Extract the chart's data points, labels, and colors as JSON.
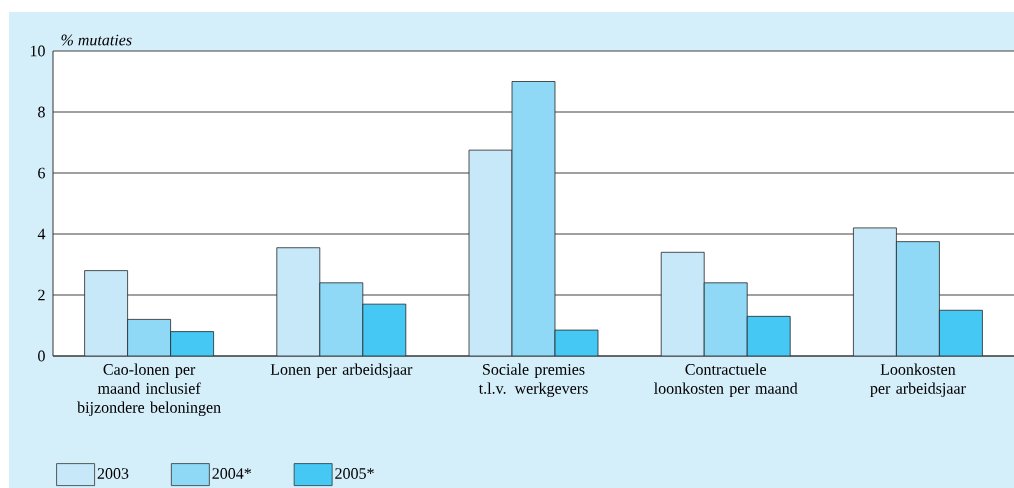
{
  "chart_data": {
    "type": "bar",
    "ylabel": "% mutaties",
    "categories": [
      "Cao-lonen per maand inclusief bijzondere beloningen",
      "Lonen per arbeidsjaar",
      "Sociale premies t.l.v. werkgevers",
      "Contractuele loonkosten per maand",
      "Loonkosten per arbeidsjaar"
    ],
    "series": [
      {
        "name": "2003",
        "color": "#c6e8f8",
        "values": [
          2.8,
          3.55,
          6.75,
          3.4,
          4.2
        ]
      },
      {
        "name": "2004*",
        "color": "#8fd8f6",
        "values": [
          1.2,
          2.4,
          9.0,
          2.4,
          3.75
        ]
      },
      {
        "name": "2005*",
        "color": "#45c8f4",
        "values": [
          0.8,
          1.7,
          0.85,
          1.3,
          1.5
        ]
      }
    ],
    "ylim": [
      0,
      10
    ],
    "yticks": [
      0,
      2,
      4,
      6,
      8,
      10
    ],
    "grid": "y",
    "legend": "bottom left"
  }
}
